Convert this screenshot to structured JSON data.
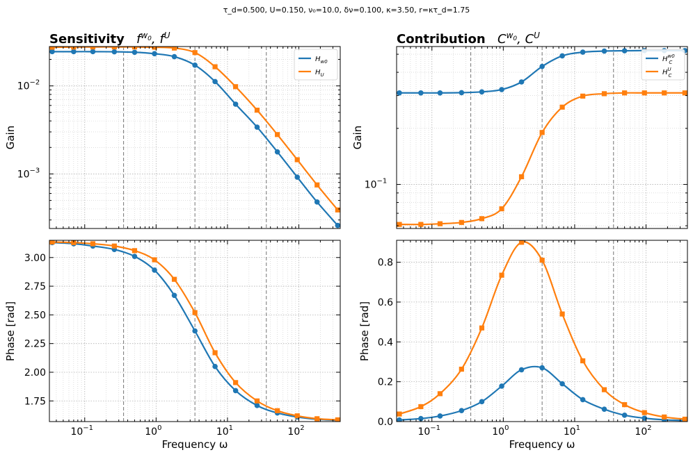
{
  "suptitle": "τ_d=0.500, U=0.150, ν₀=10.0, δν=0.100, κ=3.50, r=κτ_d=1.75",
  "colors": {
    "blue": "#1f77b4",
    "orange": "#ff7f0e"
  },
  "panels": {
    "sens_gain": {
      "title_bold": "Sensitivity",
      "title_math": "f^{w0}, f^U",
      "ylabel": "Gain",
      "yticks": [
        "10",
        "10"
      ],
      "ytick_exps": [
        "−2",
        "−3"
      ],
      "legend": [
        "H_w0",
        "H_U"
      ]
    },
    "contrib_gain": {
      "title_bold": "Contribution",
      "title_math": "C^{w0}, C^U",
      "ylabel": "Gain",
      "yticks": [
        "10"
      ],
      "ytick_exps": [
        "−1"
      ],
      "legend": [
        "H_C^w0",
        "H_C^U"
      ]
    },
    "sens_phase": {
      "ylabel": "Phase [rad]",
      "xlabel": "Frequency ω",
      "yticks": [
        "3.00",
        "2.75",
        "2.50",
        "2.25",
        "2.00",
        "1.75"
      ]
    },
    "contrib_phase": {
      "ylabel": "Phase [rad]",
      "xlabel": "Frequency ω",
      "yticks": [
        "0.8",
        "0.6",
        "0.4",
        "0.2",
        "0.0"
      ]
    }
  },
  "xticks": {
    "base": "10",
    "exps": [
      "−1",
      "0",
      "1",
      "2"
    ]
  },
  "chart_data": [
    {
      "type": "line",
      "panel": "sens_gain",
      "xscale": "log",
      "yscale": "log",
      "xlim": [
        0.032,
        380
      ],
      "ylim": [
        0.00024,
        0.028
      ],
      "vlines": [
        0.35,
        3.5,
        35
      ],
      "x": [
        0.035,
        0.07,
        0.13,
        0.26,
        0.5,
        0.95,
        1.8,
        3.5,
        6.7,
        13,
        26,
        50,
        95,
        180,
        350
      ],
      "series": [
        {
          "name": "H_w0",
          "color": "#1f77b4",
          "marker": "circle",
          "values": [
            0.0245,
            0.0245,
            0.0245,
            0.0244,
            0.0241,
            0.0232,
            0.0215,
            0.0172,
            0.0112,
            0.0062,
            0.0034,
            0.00178,
            0.00092,
            0.00048,
            0.00026
          ]
        },
        {
          "name": "H_U",
          "color": "#ff7f0e",
          "marker": "square",
          "values": [
            0.0275,
            0.0276,
            0.0277,
            0.0277,
            0.0277,
            0.0275,
            0.0269,
            0.0239,
            0.0165,
            0.0098,
            0.0053,
            0.0028,
            0.00145,
            0.00075,
            0.00039
          ]
        }
      ]
    },
    {
      "type": "line",
      "panel": "contrib_gain",
      "xscale": "log",
      "yscale": "log",
      "xlim": [
        0.032,
        380
      ],
      "ylim": [
        0.058,
        0.55
      ],
      "vlines": [
        0.35,
        3.5,
        35
      ],
      "x": [
        0.035,
        0.07,
        0.13,
        0.26,
        0.5,
        0.95,
        1.8,
        3.5,
        6.7,
        13,
        26,
        50,
        95,
        180,
        350
      ],
      "series": [
        {
          "name": "H_C^w0",
          "color": "#1f77b4",
          "marker": "circle",
          "values": [
            0.31,
            0.31,
            0.31,
            0.311,
            0.314,
            0.323,
            0.355,
            0.43,
            0.49,
            0.513,
            0.52,
            0.522,
            0.523,
            0.523,
            0.523
          ]
        },
        {
          "name": "H_C^U",
          "color": "#ff7f0e",
          "marker": "square",
          "values": [
            0.061,
            0.061,
            0.0615,
            0.0625,
            0.0655,
            0.074,
            0.11,
            0.19,
            0.26,
            0.298,
            0.307,
            0.31,
            0.31,
            0.31,
            0.31
          ]
        }
      ]
    },
    {
      "type": "line",
      "panel": "sens_phase",
      "xscale": "log",
      "yscale": "linear",
      "xlim": [
        0.032,
        380
      ],
      "ylim": [
        1.57,
        3.15
      ],
      "vlines": [
        0.35,
        3.5,
        35
      ],
      "x": [
        0.035,
        0.07,
        0.13,
        0.26,
        0.5,
        0.95,
        1.8,
        3.5,
        6.7,
        13,
        26,
        50,
        95,
        180,
        350
      ],
      "series": [
        {
          "name": "H_w0",
          "color": "#1f77b4",
          "marker": "circle",
          "values": [
            3.13,
            3.12,
            3.1,
            3.07,
            3.01,
            2.89,
            2.67,
            2.36,
            2.05,
            1.84,
            1.71,
            1.645,
            1.61,
            1.59,
            1.58
          ]
        },
        {
          "name": "H_U",
          "color": "#ff7f0e",
          "marker": "square",
          "values": [
            3.135,
            3.13,
            3.12,
            3.1,
            3.06,
            2.98,
            2.81,
            2.52,
            2.17,
            1.91,
            1.75,
            1.665,
            1.62,
            1.595,
            1.585
          ]
        }
      ]
    },
    {
      "type": "line",
      "panel": "contrib_phase",
      "xscale": "log",
      "yscale": "linear",
      "xlim": [
        0.032,
        380
      ],
      "ylim": [
        0.0,
        0.91
      ],
      "vlines": [
        0.35,
        3.5,
        35
      ],
      "x": [
        0.035,
        0.07,
        0.13,
        0.26,
        0.5,
        0.95,
        1.8,
        3.5,
        6.7,
        13,
        26,
        50,
        95,
        180,
        350
      ],
      "series": [
        {
          "name": "H_C^w0",
          "color": "#1f77b4",
          "marker": "circle",
          "values": [
            0.008,
            0.015,
            0.028,
            0.055,
            0.1,
            0.178,
            0.26,
            0.27,
            0.19,
            0.11,
            0.062,
            0.032,
            0.017,
            0.009,
            0.005
          ]
        },
        {
          "name": "H_C^U",
          "color": "#ff7f0e",
          "marker": "square",
          "values": [
            0.038,
            0.075,
            0.14,
            0.263,
            0.47,
            0.735,
            0.9,
            0.81,
            0.54,
            0.305,
            0.16,
            0.085,
            0.045,
            0.023,
            0.012
          ]
        }
      ]
    }
  ]
}
